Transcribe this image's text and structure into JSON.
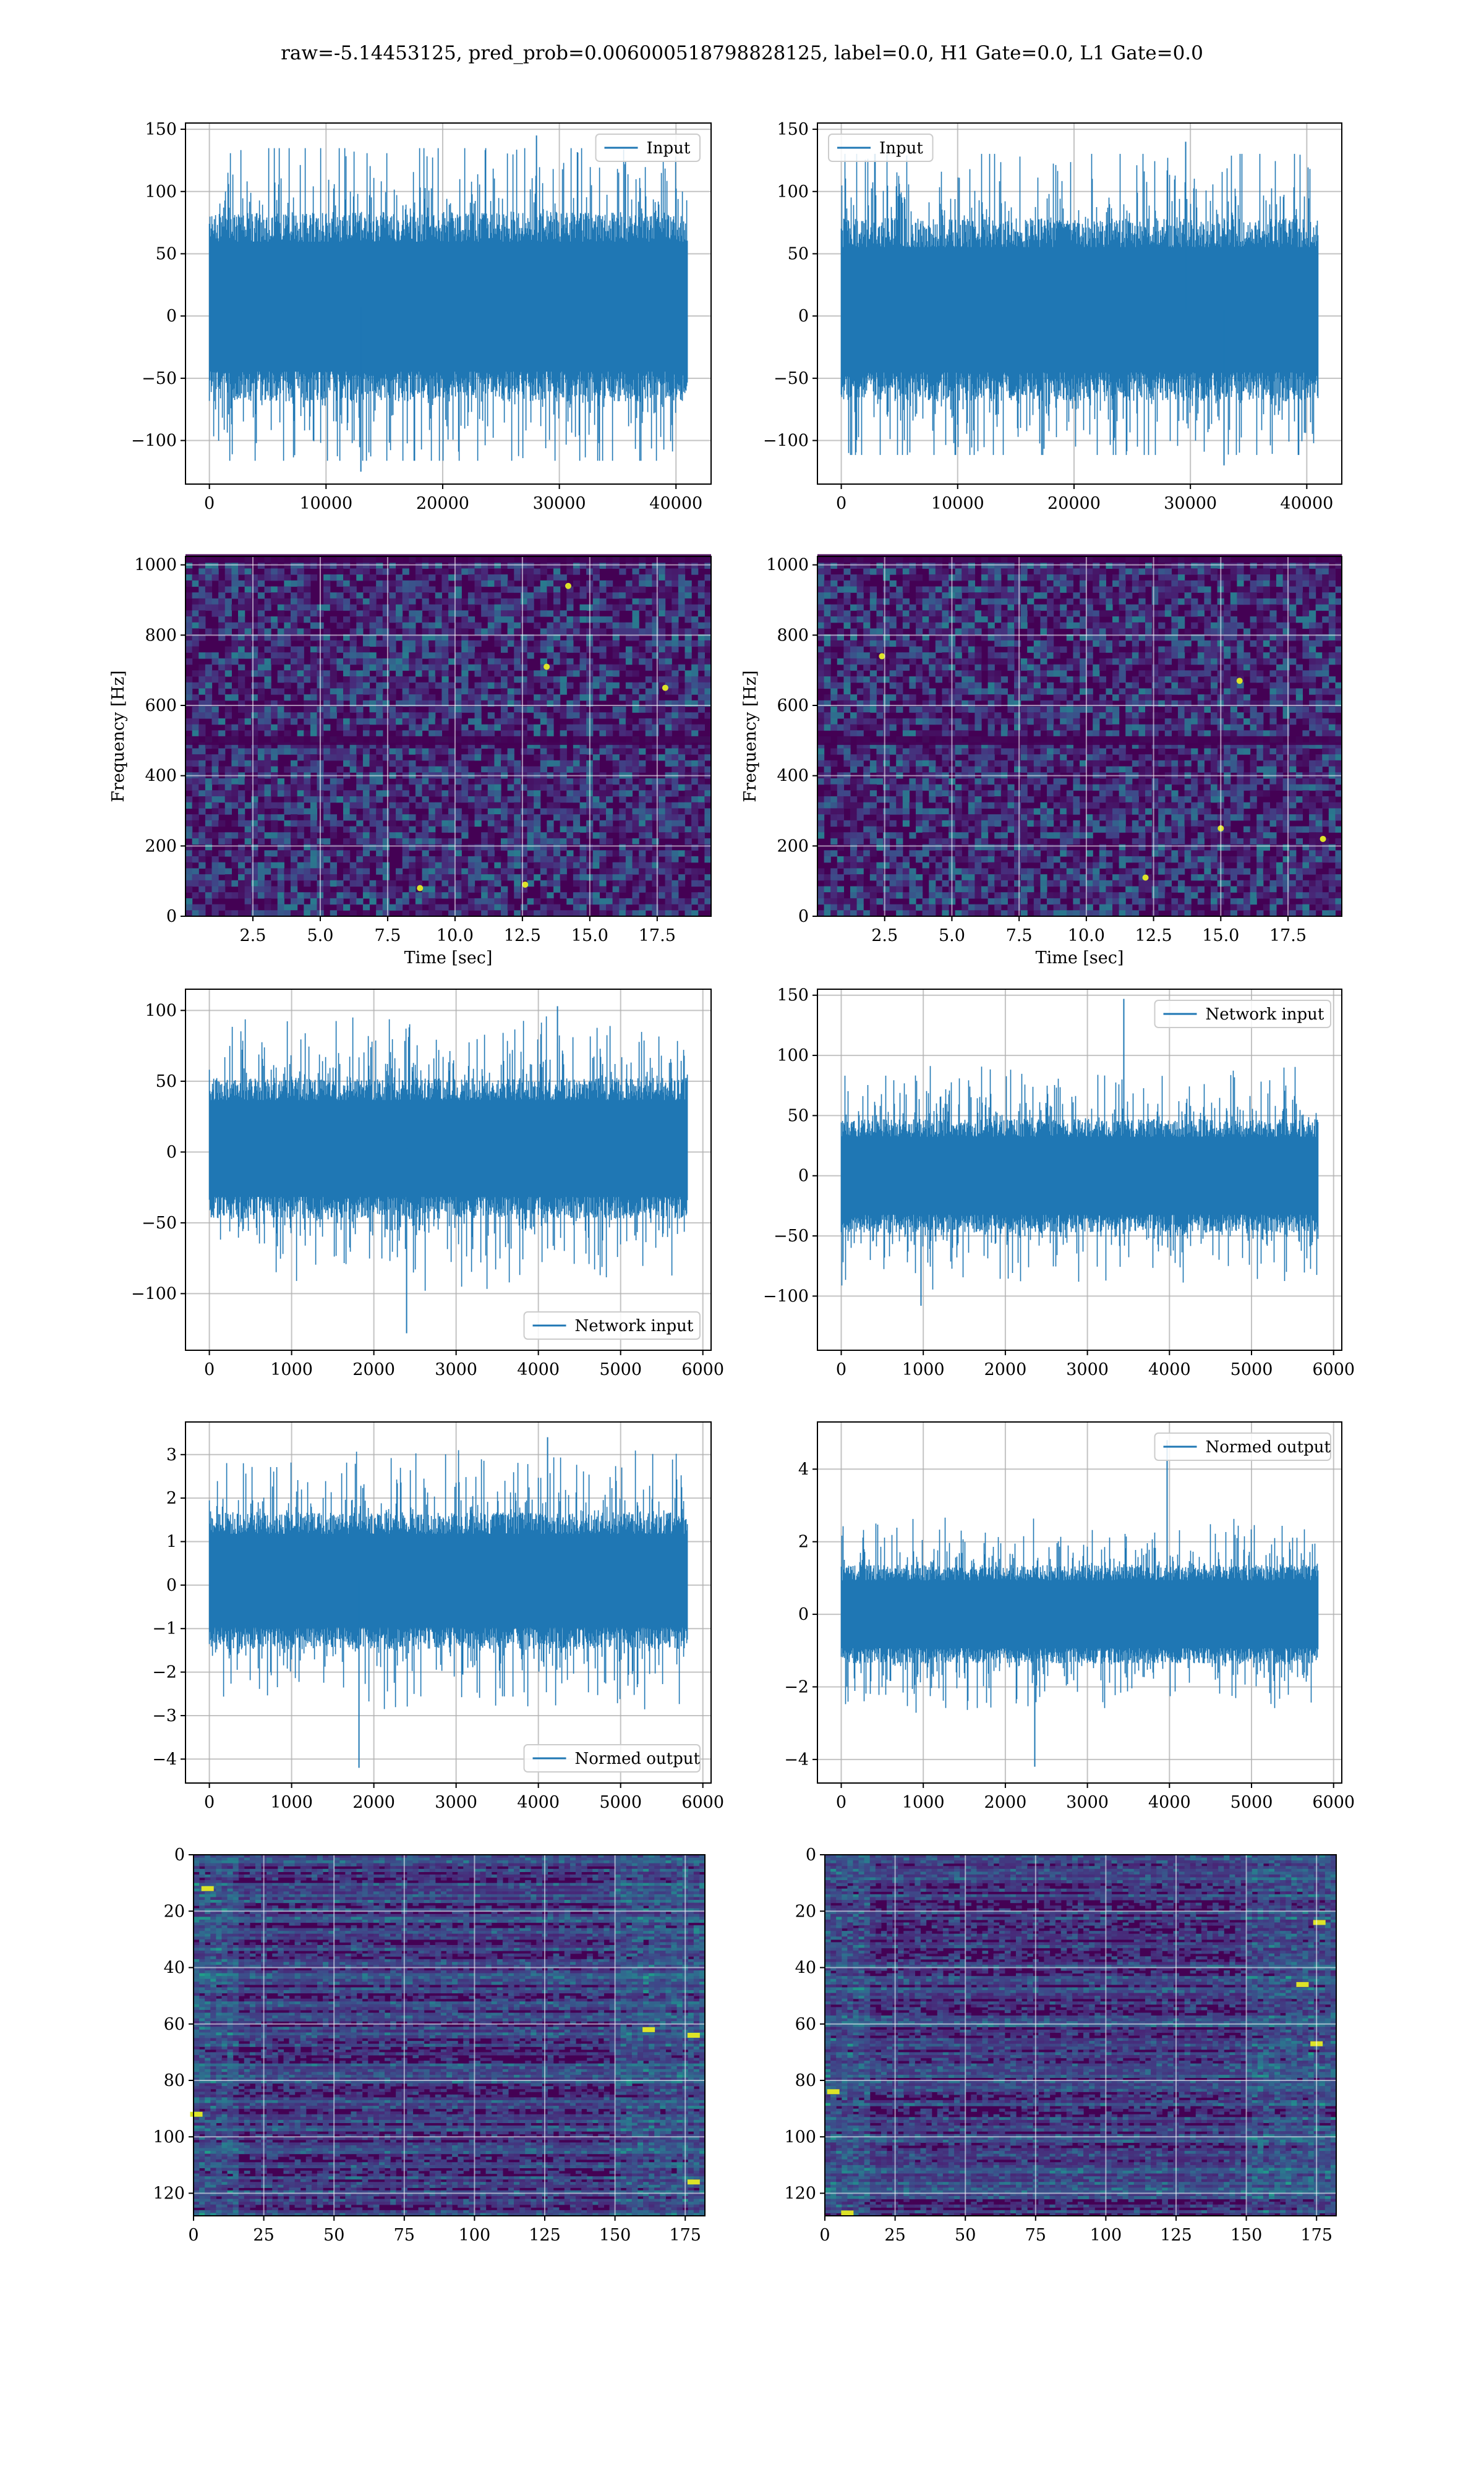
{
  "suptitle": "raw=-5.14453125, pred_prob=0.006000518798828125, label=0.0, H1 Gate=0.0, L1 Gate=0.0",
  "colors": {
    "line": "#1f77b4",
    "grid": "#b0b0b0",
    "spine": "#000000",
    "viridis": [
      "#440154",
      "#482878",
      "#3e4989",
      "#31688e",
      "#26828e",
      "#1f9e89",
      "#35b779",
      "#6ece58",
      "#b5de2b",
      "#fde725"
    ]
  },
  "chart_data": [
    {
      "type": "line",
      "panel": "top-left",
      "series": [
        {
          "name": "Input",
          "n_samples": 40960,
          "envelope": {
            "low": -65,
            "high": 80,
            "min": -125,
            "max": 145
          }
        }
      ],
      "legend": "upper right",
      "xlim": [
        -2048,
        43008
      ],
      "ylim": [
        -135,
        155
      ],
      "xticks": [
        0,
        10000,
        20000,
        30000,
        40000
      ],
      "yticks": [
        -100,
        -50,
        0,
        50,
        100,
        150
      ],
      "xlabel": "",
      "ylabel": "",
      "grid": true
    },
    {
      "type": "line",
      "panel": "top-right",
      "series": [
        {
          "name": "Input",
          "n_samples": 40960,
          "envelope": {
            "low": -65,
            "high": 75,
            "min": -120,
            "max": 140
          }
        }
      ],
      "legend": "upper left",
      "xlim": [
        -2048,
        43008
      ],
      "ylim": [
        -135,
        155
      ],
      "xticks": [
        0,
        10000,
        20000,
        30000,
        40000
      ],
      "yticks": [
        -100,
        -50,
        0,
        50,
        100,
        150
      ],
      "xlabel": "",
      "ylabel": "",
      "grid": true
    },
    {
      "type": "heatmap",
      "panel": "spectrogram-left",
      "xlabel": "Time [sec]",
      "ylabel": "Frequency [Hz]",
      "xlim": [
        0.0,
        19.5
      ],
      "ylim": [
        0,
        1024
      ],
      "xticks": [
        2.5,
        5.0,
        7.5,
        10.0,
        12.5,
        15.0,
        17.5
      ],
      "yticks": [
        0,
        200,
        400,
        600,
        800,
        1000
      ],
      "colormap": "viridis",
      "dark_bands_hz": [
        500,
        1018
      ],
      "hotspots": [
        [
          14.2,
          940
        ],
        [
          13.4,
          710
        ],
        [
          8.7,
          80
        ],
        [
          12.6,
          90
        ],
        [
          17.8,
          650
        ]
      ],
      "grid": true
    },
    {
      "type": "heatmap",
      "panel": "spectrogram-right",
      "xlabel": "Time [sec]",
      "ylabel": "Frequency [Hz]",
      "xlim": [
        0.0,
        19.5
      ],
      "ylim": [
        0,
        1024
      ],
      "xticks": [
        2.5,
        5.0,
        7.5,
        10.0,
        12.5,
        15.0,
        17.5
      ],
      "yticks": [
        0,
        200,
        400,
        600,
        800,
        1000
      ],
      "colormap": "viridis",
      "dark_bands_hz": [
        500,
        1018
      ],
      "hotspots": [
        [
          15.7,
          670
        ],
        [
          15.0,
          250
        ],
        [
          2.4,
          740
        ],
        [
          12.2,
          110
        ],
        [
          18.8,
          220
        ]
      ],
      "grid": true
    },
    {
      "type": "line",
      "panel": "network-input-left",
      "series": [
        {
          "name": "Network input",
          "n_samples": 5810,
          "envelope": {
            "low": -45,
            "high": 50,
            "min": -128,
            "max": 103
          }
        }
      ],
      "legend": "lower right",
      "xlim": [
        -290,
        6100
      ],
      "ylim": [
        -140,
        115
      ],
      "xticks": [
        0,
        1000,
        2000,
        3000,
        4000,
        5000,
        6000
      ],
      "yticks": [
        -100,
        -50,
        0,
        50,
        100
      ],
      "xlabel": "",
      "ylabel": "",
      "grid": true
    },
    {
      "type": "line",
      "panel": "network-input-right",
      "series": [
        {
          "name": "Network input",
          "n_samples": 5810,
          "envelope": {
            "low": -45,
            "high": 45,
            "min": -108,
            "max": 147
          }
        }
      ],
      "legend": "upper right",
      "xlim": [
        -290,
        6100
      ],
      "ylim": [
        -145,
        155
      ],
      "xticks": [
        0,
        1000,
        2000,
        3000,
        4000,
        5000,
        6000
      ],
      "yticks": [
        -100,
        -50,
        0,
        50,
        100,
        150
      ],
      "xlabel": "",
      "ylabel": "",
      "grid": true
    },
    {
      "type": "line",
      "panel": "normed-output-left",
      "series": [
        {
          "name": "Normed output",
          "n_samples": 5810,
          "envelope": {
            "low": -1.4,
            "high": 1.6,
            "min": -4.2,
            "max": 3.4
          }
        }
      ],
      "legend": "lower right",
      "xlim": [
        -290,
        6100
      ],
      "ylim": [
        -4.55,
        3.75
      ],
      "xticks": [
        0,
        1000,
        2000,
        3000,
        4000,
        5000,
        6000
      ],
      "yticks": [
        -4,
        -3,
        -2,
        -1,
        0,
        1,
        2,
        3
      ],
      "xlabel": "",
      "ylabel": "",
      "grid": true
    },
    {
      "type": "line",
      "panel": "normed-output-right",
      "series": [
        {
          "name": "Normed output",
          "n_samples": 5810,
          "envelope": {
            "low": -1.3,
            "high": 1.3,
            "min": -4.2,
            "max": 4.8
          }
        }
      ],
      "legend": "upper right",
      "xlim": [
        -290,
        6100
      ],
      "ylim": [
        -4.65,
        5.3
      ],
      "xticks": [
        0,
        1000,
        2000,
        3000,
        4000,
        5000,
        6000
      ],
      "yticks": [
        -4,
        -2,
        0,
        2,
        4
      ],
      "xlabel": "",
      "ylabel": "",
      "grid": true
    },
    {
      "type": "heatmap",
      "panel": "feature-map-left",
      "rows": 128,
      "cols": 182,
      "xlim": [
        0,
        182
      ],
      "ylim": [
        128,
        0
      ],
      "xticks": [
        0,
        25,
        50,
        75,
        100,
        125,
        150,
        175
      ],
      "yticks": [
        0,
        20,
        40,
        60,
        80,
        100,
        120
      ],
      "colormap": "viridis",
      "hotspots": [
        [
          5,
          12
        ],
        [
          178,
          64
        ],
        [
          178,
          116
        ],
        [
          162,
          62
        ],
        [
          1,
          92
        ]
      ],
      "xlabel": "",
      "ylabel": "",
      "grid": true
    },
    {
      "type": "heatmap",
      "panel": "feature-map-right",
      "rows": 128,
      "cols": 182,
      "xlim": [
        0,
        182
      ],
      "ylim": [
        128,
        0
      ],
      "xticks": [
        0,
        25,
        50,
        75,
        100,
        125,
        150,
        175
      ],
      "yticks": [
        0,
        20,
        40,
        60,
        80,
        100,
        120
      ],
      "colormap": "viridis",
      "hotspots": [
        [
          170,
          46
        ],
        [
          175,
          67
        ],
        [
          3,
          84
        ],
        [
          8,
          127
        ],
        [
          176,
          24
        ]
      ],
      "xlabel": "",
      "ylabel": "",
      "grid": true
    }
  ]
}
